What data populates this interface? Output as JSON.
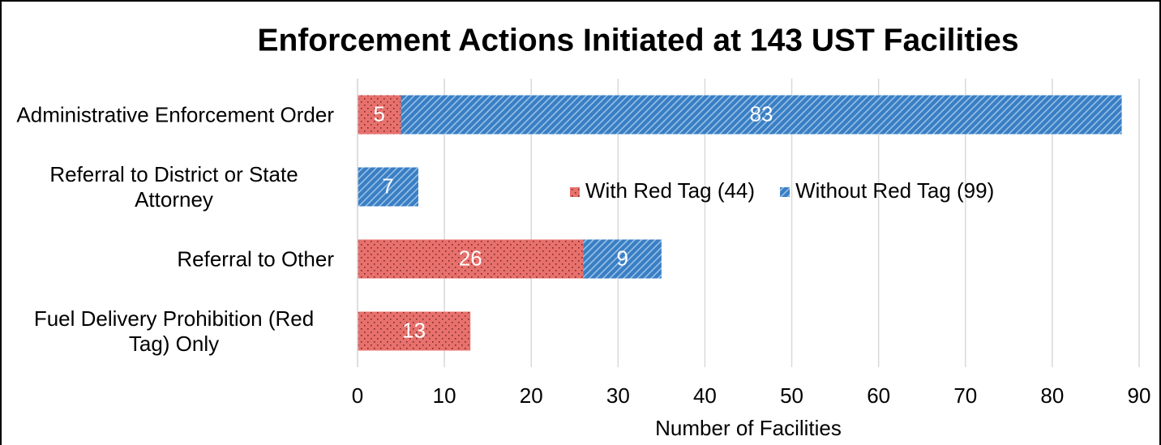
{
  "chart_data": {
    "type": "stacked-bar-horizontal",
    "title": "Enforcement Actions Initiated at 143 UST Facilities",
    "xlabel": "Number of Facilities",
    "categories": [
      "Administrative Enforcement Order",
      "Referral to District or State Attorney",
      "Referral to Other",
      "Fuel Delivery Prohibition (Red Tag) Only"
    ],
    "series": [
      {
        "name": "With Red Tag (44)",
        "color": "#e8716d",
        "values": [
          5,
          null,
          26,
          13
        ]
      },
      {
        "name": "Without Red Tag (99)",
        "color": "#3a7fc4",
        "values": [
          83,
          7,
          9,
          null
        ]
      }
    ],
    "xlim": [
      0,
      90
    ],
    "xticks": [
      0,
      10,
      20,
      30,
      40,
      50,
      60,
      70,
      80,
      90
    ],
    "grid": true
  }
}
